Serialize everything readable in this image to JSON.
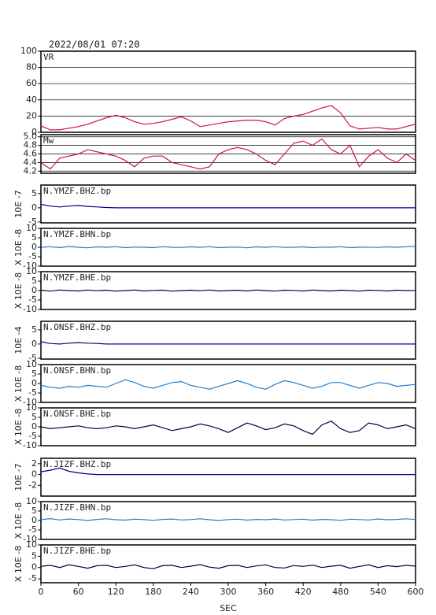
{
  "chart_data": [
    {
      "type": "line",
      "title": "2022/08/01 07:20",
      "label": "VR",
      "color": "#d0104c",
      "grid": true,
      "xlim": [
        0,
        600
      ],
      "ylim": [
        0,
        100
      ],
      "yticks": [
        0,
        20,
        40,
        60,
        80,
        100
      ],
      "x": [
        0,
        15,
        30,
        45,
        60,
        75,
        90,
        105,
        120,
        135,
        150,
        165,
        180,
        195,
        210,
        225,
        240,
        255,
        270,
        285,
        300,
        315,
        330,
        345,
        360,
        375,
        390,
        405,
        420,
        435,
        450,
        465,
        480,
        495,
        510,
        525,
        540,
        555,
        570,
        585,
        600
      ],
      "values": [
        8,
        3,
        3,
        5,
        7,
        10,
        14,
        18,
        21,
        18,
        13,
        10,
        11,
        13,
        16,
        19,
        14,
        7,
        9,
        11,
        13,
        14,
        15,
        15,
        13,
        9,
        17,
        20,
        22,
        26,
        30,
        33,
        24,
        8,
        4,
        5,
        6,
        4,
        4,
        7,
        10
      ]
    },
    {
      "type": "line",
      "label": "Mw",
      "color": "#d0104c",
      "grid": true,
      "xlim": [
        0,
        600
      ],
      "ylim": [
        4.15,
        5.05
      ],
      "yticks": [
        4.2,
        4.4,
        4.6,
        4.8,
        {
          "value": 5,
          "label": "5.0"
        }
      ],
      "x": [
        0,
        15,
        30,
        45,
        60,
        75,
        90,
        105,
        120,
        135,
        150,
        165,
        180,
        195,
        210,
        225,
        240,
        255,
        270,
        285,
        300,
        315,
        330,
        345,
        360,
        375,
        390,
        405,
        420,
        435,
        450,
        465,
        480,
        495,
        510,
        525,
        540,
        555,
        570,
        585,
        600
      ],
      "values": [
        4.4,
        4.25,
        4.5,
        4.55,
        4.6,
        4.7,
        4.65,
        4.6,
        4.55,
        4.45,
        4.3,
        4.5,
        4.55,
        4.55,
        4.4,
        4.35,
        4.3,
        4.25,
        4.3,
        4.6,
        4.7,
        4.75,
        4.7,
        4.6,
        4.45,
        4.35,
        4.6,
        4.85,
        4.9,
        4.8,
        4.95,
        4.7,
        4.6,
        4.8,
        4.3,
        4.55,
        4.7,
        4.5,
        4.4,
        4.6,
        4.45
      ]
    },
    {
      "type": "line",
      "label": "N.YMZF.BHZ.bp",
      "ylabel": "10E -7",
      "color": "#00008b",
      "xlim": [
        0,
        600
      ],
      "ylim": [
        -5.3,
        8
      ],
      "yticks": [
        -5,
        0,
        5
      ],
      "x": [
        0,
        15,
        30,
        45,
        60,
        75,
        90,
        105,
        120,
        135,
        150,
        165,
        180,
        195,
        210,
        225,
        240,
        255,
        270,
        285,
        300,
        315,
        330,
        345,
        360,
        375,
        390,
        405,
        420,
        435,
        450,
        465,
        480,
        495,
        510,
        525,
        540,
        555,
        570,
        585,
        600
      ],
      "values": [
        1.2,
        0.6,
        0.3,
        0.6,
        0.8,
        0.5,
        0.3,
        0.1,
        0,
        0,
        0,
        0,
        0,
        0,
        0,
        0,
        0,
        0,
        0,
        0,
        0,
        0,
        0,
        0,
        0,
        0,
        0,
        0,
        0,
        0,
        0,
        0,
        0,
        0,
        0,
        0,
        0,
        0,
        0,
        0,
        0
      ]
    },
    {
      "type": "line",
      "label": "N.YMZF.BHN.bp",
      "ylabel": "X 10E -8",
      "color": "#1e7fd0",
      "xlim": [
        0,
        600
      ],
      "ylim": [
        -10,
        10
      ],
      "yticks": [
        -10,
        -5,
        0,
        5,
        10
      ],
      "x": [
        0,
        15,
        30,
        45,
        60,
        75,
        90,
        105,
        120,
        135,
        150,
        165,
        180,
        195,
        210,
        225,
        240,
        255,
        270,
        285,
        300,
        315,
        330,
        345,
        360,
        375,
        390,
        405,
        420,
        435,
        450,
        465,
        480,
        495,
        510,
        525,
        540,
        555,
        570,
        585,
        600
      ],
      "values": [
        0,
        0.3,
        -0.2,
        0.4,
        0,
        -0.3,
        0.2,
        0,
        0.3,
        -0.2,
        0.1,
        0,
        -0.2,
        0.3,
        0,
        -0.1,
        0.2,
        0,
        0.3,
        -0.2,
        0,
        0.1,
        -0.3,
        0.2,
        0,
        0.3,
        -0.1,
        0,
        0.2,
        -0.2,
        0.1,
        0,
        0.3,
        -0.2,
        0,
        0.1,
        -0.1,
        0.2,
        0,
        0.3,
        0.5
      ]
    },
    {
      "type": "line",
      "label": "N.YMZF.BHE.bp",
      "ylabel": "X 10E -8",
      "color": "#000040",
      "xlim": [
        0,
        600
      ],
      "ylim": [
        -10,
        10
      ],
      "yticks": [
        -10,
        -5,
        0,
        5,
        10
      ],
      "x": [
        0,
        15,
        30,
        45,
        60,
        75,
        90,
        105,
        120,
        135,
        150,
        165,
        180,
        195,
        210,
        225,
        240,
        255,
        270,
        285,
        300,
        315,
        330,
        345,
        360,
        375,
        390,
        405,
        420,
        435,
        450,
        465,
        480,
        495,
        510,
        525,
        540,
        555,
        570,
        585,
        600
      ],
      "values": [
        0.2,
        -0.3,
        0.3,
        0,
        -0.2,
        0.3,
        -0.1,
        0.2,
        -0.3,
        0,
        0.3,
        -0.2,
        0.1,
        0.2,
        -0.3,
        0,
        0.2,
        -0.1,
        0.3,
        -0.2,
        0,
        0.2,
        -0.2,
        0.3,
        0,
        -0.3,
        0.2,
        0.1,
        -0.2,
        0.3,
        0,
        -0.2,
        0.2,
        0,
        -0.3,
        0.2,
        0.1,
        -0.2,
        0.2,
        0,
        0.1
      ]
    },
    {
      "type": "line",
      "label": "N.ONSF.BHZ.bp",
      "ylabel": "10E -4",
      "color": "#00008b",
      "xlim": [
        0,
        600
      ],
      "ylim": [
        -5.3,
        8
      ],
      "yticks": [
        -5,
        0,
        5
      ],
      "x": [
        0,
        15,
        30,
        45,
        60,
        75,
        90,
        105,
        120,
        135,
        150,
        165,
        180,
        195,
        210,
        225,
        240,
        255,
        270,
        285,
        300,
        315,
        330,
        345,
        360,
        375,
        390,
        405,
        420,
        435,
        450,
        465,
        480,
        495,
        510,
        525,
        540,
        555,
        570,
        585,
        600
      ],
      "values": [
        0.8,
        0.2,
        0,
        0.3,
        0.5,
        0.3,
        0.2,
        0,
        0,
        0,
        0,
        0,
        0,
        0,
        0,
        0,
        0,
        0,
        0,
        0,
        0,
        0,
        0,
        0,
        0,
        0,
        0,
        0,
        0,
        0,
        0,
        0,
        0,
        0,
        0,
        0,
        0,
        0,
        0,
        0,
        0
      ]
    },
    {
      "type": "line",
      "label": "N.ONSF.BHN.bp",
      "ylabel": "X 10E -8",
      "color": "#1e7fd0",
      "xlim": [
        0,
        600
      ],
      "ylim": [
        -10,
        10
      ],
      "yticks": [
        -10,
        -5,
        0,
        5,
        10
      ],
      "x": [
        0,
        15,
        30,
        45,
        60,
        75,
        90,
        105,
        120,
        135,
        150,
        165,
        180,
        195,
        210,
        225,
        240,
        255,
        270,
        285,
        300,
        315,
        330,
        345,
        360,
        375,
        390,
        405,
        420,
        435,
        450,
        465,
        480,
        495,
        510,
        525,
        540,
        555,
        570,
        585,
        600
      ],
      "values": [
        -1,
        -2,
        -2.5,
        -1.5,
        -2,
        -1,
        -1.5,
        -2,
        0,
        2,
        0.5,
        -1.5,
        -2.5,
        -1,
        0.5,
        1,
        -1,
        -2,
        -3,
        -1.5,
        0,
        1.5,
        0,
        -2,
        -3,
        -0.5,
        1.5,
        0.5,
        -1,
        -2.5,
        -1.5,
        0.5,
        0.5,
        -1,
        -2.5,
        -1,
        0.5,
        0,
        -1.5,
        -1,
        -0.5
      ]
    },
    {
      "type": "line",
      "label": "N.ONSF.BHE.bp",
      "ylabel": "X 10E -8",
      "color": "#000040",
      "xlim": [
        0,
        600
      ],
      "ylim": [
        -10,
        10
      ],
      "yticks": [
        -10,
        -5,
        0,
        5,
        10
      ],
      "x": [
        0,
        15,
        30,
        45,
        60,
        75,
        90,
        105,
        120,
        135,
        150,
        165,
        180,
        195,
        210,
        225,
        240,
        255,
        270,
        285,
        300,
        315,
        330,
        345,
        360,
        375,
        390,
        405,
        420,
        435,
        450,
        465,
        480,
        495,
        510,
        525,
        540,
        555,
        570,
        585,
        600
      ],
      "values": [
        0,
        -1,
        -0.5,
        0,
        0.5,
        -0.5,
        -1,
        -0.5,
        0.5,
        0,
        -1,
        0,
        1,
        -0.5,
        -2,
        -1,
        0,
        1.5,
        0.5,
        -1,
        -3,
        -0.5,
        2,
        0.5,
        -1.5,
        -0.5,
        1.5,
        0.5,
        -2,
        -4,
        1,
        3,
        -1,
        -3,
        -2,
        2,
        1,
        -1,
        0,
        1,
        -1
      ]
    },
    {
      "type": "line",
      "label": "N.JIZF.BHZ.bp",
      "ylabel": "10E -7",
      "color": "#00008b",
      "xlim": [
        0,
        600
      ],
      "ylim": [
        -4,
        3
      ],
      "yticks": [
        -2,
        0,
        2
      ],
      "x": [
        0,
        15,
        30,
        45,
        60,
        75,
        90,
        105,
        120,
        135,
        150,
        165,
        180,
        195,
        210,
        225,
        240,
        255,
        270,
        285,
        300,
        315,
        330,
        345,
        360,
        375,
        390,
        405,
        420,
        435,
        450,
        465,
        480,
        495,
        510,
        525,
        540,
        555,
        570,
        585,
        600
      ],
      "values": [
        0.5,
        0.8,
        1.2,
        0.6,
        0.3,
        0.1,
        0,
        0,
        0,
        0,
        0,
        0,
        0,
        0,
        0,
        0,
        0,
        0,
        0,
        0,
        0,
        0,
        0,
        0,
        0,
        0,
        0,
        0,
        0,
        0,
        0,
        0,
        0,
        0,
        0,
        0,
        0,
        0,
        0,
        0,
        0
      ]
    },
    {
      "type": "line",
      "label": "N.JIZF.BHN.bp",
      "ylabel": "X 10E -8",
      "color": "#1e7fd0",
      "xlim": [
        0,
        600
      ],
      "ylim": [
        -10,
        10
      ],
      "yticks": [
        -10,
        -5,
        0,
        5,
        10
      ],
      "x": [
        0,
        15,
        30,
        45,
        60,
        75,
        90,
        105,
        120,
        135,
        150,
        165,
        180,
        195,
        210,
        225,
        240,
        255,
        270,
        285,
        300,
        315,
        330,
        345,
        360,
        375,
        390,
        405,
        420,
        435,
        450,
        465,
        480,
        495,
        510,
        525,
        540,
        555,
        570,
        585,
        600
      ],
      "values": [
        0.5,
        1,
        0.3,
        0.8,
        0.5,
        0,
        0.6,
        0.9,
        0.4,
        0.2,
        0.7,
        0.5,
        0.1,
        0.6,
        0.8,
        0.3,
        0.5,
        0.9,
        0.4,
        0,
        0.5,
        0.7,
        0.2,
        0.6,
        0.4,
        0.8,
        0.3,
        0.5,
        0.7,
        0.2,
        0.6,
        0.4,
        0.1,
        0.7,
        0.5,
        0.3,
        0.8,
        0.4,
        0.6,
        0.9,
        0.5
      ]
    },
    {
      "type": "line",
      "label": "N.JIZF.BHE.bp",
      "ylabel": "X 10E -8",
      "color": "#000040",
      "xlim": [
        0,
        600
      ],
      "ylim": [
        -6.7,
        10
      ],
      "yticks": [
        -5,
        0,
        5,
        10
      ],
      "x": [
        0,
        15,
        30,
        45,
        60,
        75,
        90,
        105,
        120,
        135,
        150,
        165,
        180,
        195,
        210,
        225,
        240,
        255,
        270,
        285,
        300,
        315,
        330,
        345,
        360,
        375,
        390,
        405,
        420,
        435,
        450,
        465,
        480,
        495,
        510,
        525,
        540,
        555,
        570,
        585,
        600
      ],
      "values": [
        0.5,
        1,
        0,
        1.2,
        0.5,
        -0.3,
        0.8,
        1,
        0,
        0.5,
        1.2,
        0,
        -0.5,
        0.8,
        1,
        0,
        0.6,
        1.3,
        0.2,
        -0.3,
        0.8,
        1,
        0,
        0.7,
        1.2,
        0,
        -0.2,
        0.9,
        0.5,
        1.1,
        0,
        0.6,
        1,
        -0.3,
        0.5,
        1.2,
        0,
        0.8,
        0.4,
        1,
        0.6
      ],
      "xticks": [
        0,
        60,
        120,
        180,
        240,
        300,
        360,
        420,
        480,
        540,
        600
      ],
      "xlabel": "SEC"
    }
  ]
}
